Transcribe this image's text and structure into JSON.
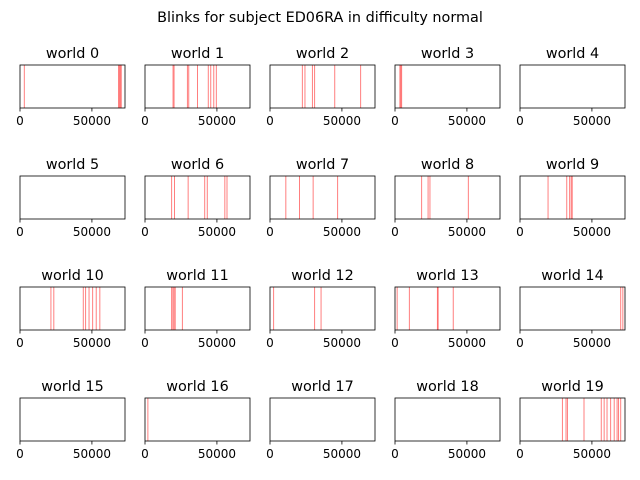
{
  "figure": {
    "suptitle": "Blinks for subject ED06RA in difficulty normal"
  },
  "chart_data": {
    "type": "event_raster",
    "xlim": [
      0,
      73000
    ],
    "x_ticks": [
      0,
      50000
    ],
    "x_tick_labels": [
      "0",
      "50000"
    ],
    "yticks": "none",
    "grid": false,
    "line_color": "#ff0000",
    "line_alpha": 0.5,
    "panels": [
      {
        "title": "world 0",
        "events": [
          3000,
          68500,
          69200,
          69800,
          70400
        ]
      },
      {
        "title": "world 1",
        "events": [
          19500,
          20200,
          29500,
          30400,
          36500,
          44000,
          45700,
          47800,
          49600
        ]
      },
      {
        "title": "world 2",
        "events": [
          22500,
          24300,
          29500,
          31000,
          45000,
          63000
        ]
      },
      {
        "title": "world 3",
        "events": [
          3400,
          4000,
          4600
        ]
      },
      {
        "title": "world 4",
        "events": []
      },
      {
        "title": "world 5",
        "events": []
      },
      {
        "title": "world 6",
        "events": [
          18500,
          20500,
          30000,
          41500,
          43300,
          55500,
          57000
        ]
      },
      {
        "title": "world 7",
        "events": [
          11000,
          20500,
          30000,
          47000
        ]
      },
      {
        "title": "world 8",
        "events": [
          18500,
          23000,
          24300,
          51000
        ]
      },
      {
        "title": "world 9",
        "events": [
          19500,
          32500,
          34500,
          35600,
          36300
        ]
      },
      {
        "title": "world 10",
        "events": [
          21500,
          23500,
          44000,
          45600,
          48000,
          50500,
          53000,
          55500
        ]
      },
      {
        "title": "world 11",
        "events": [
          18500,
          19400,
          20200,
          21000,
          26000
        ]
      },
      {
        "title": "world 12",
        "events": [
          2500,
          31000,
          35500
        ]
      },
      {
        "title": "world 13",
        "events": [
          1500,
          10000,
          29500,
          30000,
          40500
        ]
      },
      {
        "title": "world 14",
        "events": [
          70000,
          71500
        ]
      },
      {
        "title": "world 15",
        "events": []
      },
      {
        "title": "world 16",
        "events": [
          2000
        ]
      },
      {
        "title": "world 17",
        "events": []
      },
      {
        "title": "world 18",
        "events": []
      },
      {
        "title": "world 19",
        "events": [
          29500,
          32000,
          33000,
          44500,
          56500,
          58500,
          60500,
          63000,
          65500,
          67500,
          68500,
          70000
        ]
      }
    ]
  }
}
